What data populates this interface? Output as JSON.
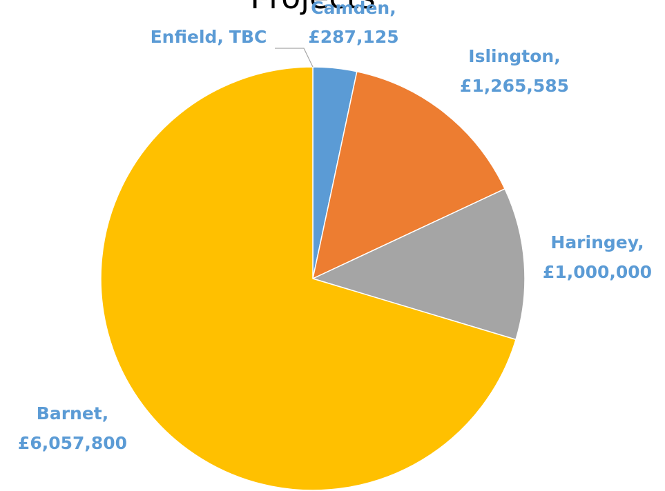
{
  "chart_data": {
    "type": "pie",
    "title": "Projects",
    "categories": [
      "Enfield",
      "Camden",
      "Islington",
      "Haringey",
      "Barnet"
    ],
    "values": [
      null,
      287125,
      1265585,
      1000000,
      6057800
    ],
    "value_labels": [
      "TBC",
      "£287,125",
      "£1,265,585",
      "£1,000,000",
      "£6,057,800"
    ],
    "data_label_separator": ",",
    "colors": [
      "#5b9bd5",
      "#5b9bd5",
      "#ed7d31",
      "#a5a5a5",
      "#ffc000"
    ],
    "label_color": "#5b9bd5"
  }
}
